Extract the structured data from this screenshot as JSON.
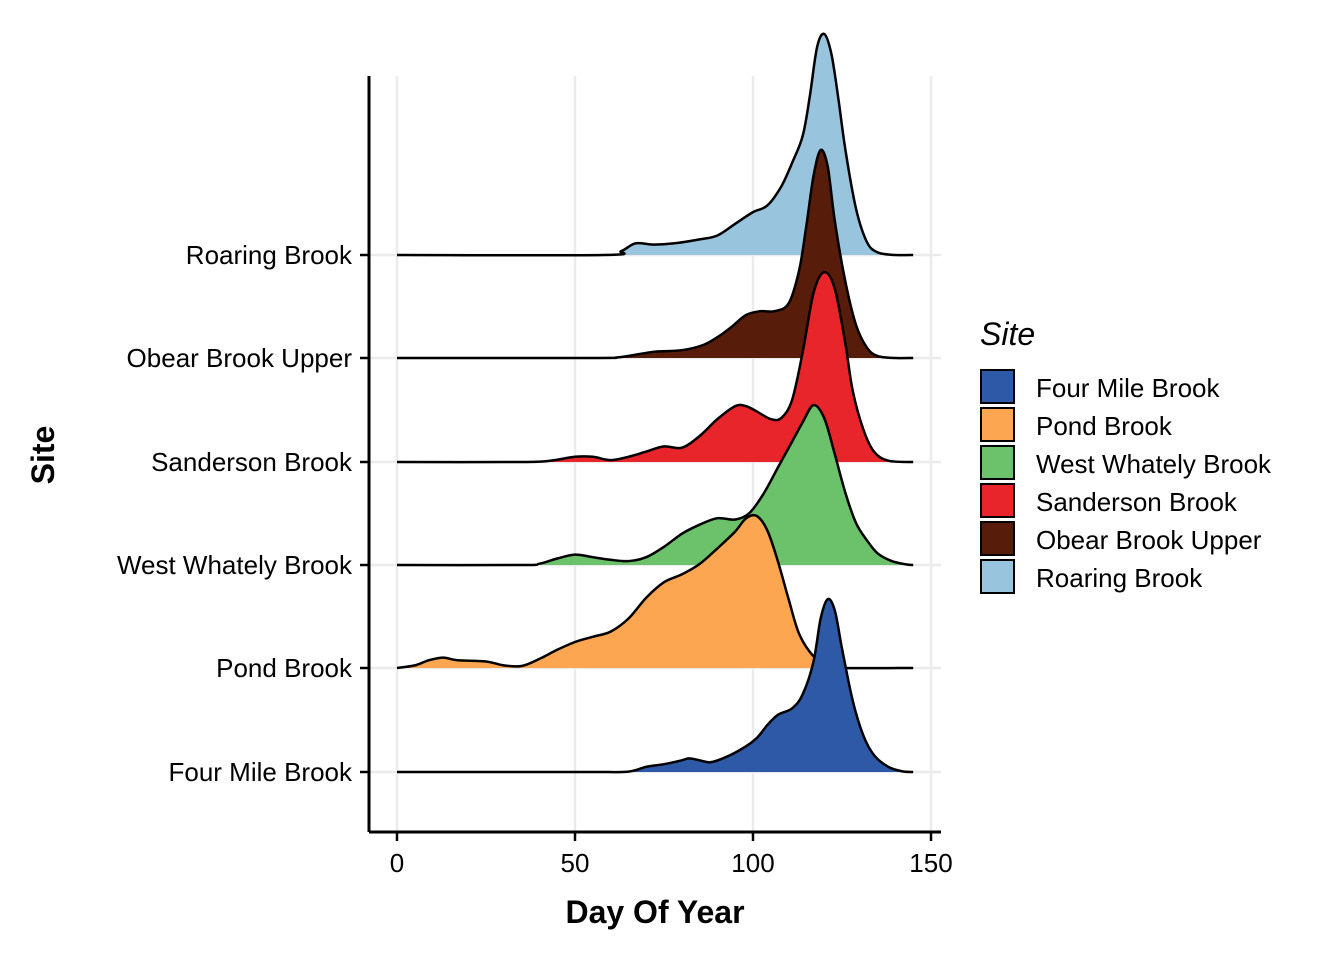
{
  "chart_data": {
    "type": "ridgeline",
    "title": "",
    "xlabel": "Day Of Year",
    "ylabel": "Site",
    "xlim": [
      -8,
      152
    ],
    "x_ticks": [
      0,
      50,
      100,
      150
    ],
    "x_tick_labels": [
      "0",
      "50",
      "100",
      "150"
    ],
    "grid": "vertical",
    "legend": {
      "title": "Site",
      "placement": "right"
    },
    "categories": [
      "Four Mile Brook",
      "Pond Brook",
      "West Whately Brook",
      "Sanderson Brook",
      "Obear Brook Upper",
      "Roaring Brook"
    ],
    "series": [
      {
        "name": "Four Mile Brook",
        "color": "#2E59A7",
        "points": [
          [
            0,
            0
          ],
          [
            35,
            0
          ],
          [
            55,
            0
          ],
          [
            65,
            0.003
          ],
          [
            70,
            0.04
          ],
          [
            75,
            0.06
          ],
          [
            80,
            0.09
          ],
          [
            82,
            0.105
          ],
          [
            85,
            0.09
          ],
          [
            88,
            0.075
          ],
          [
            92,
            0.11
          ],
          [
            97,
            0.18
          ],
          [
            101,
            0.26
          ],
          [
            104,
            0.36
          ],
          [
            107,
            0.44
          ],
          [
            111,
            0.49
          ],
          [
            114,
            0.6
          ],
          [
            117,
            0.85
          ],
          [
            119,
            1.18
          ],
          [
            121,
            1.33
          ],
          [
            123,
            1.24
          ],
          [
            125,
            0.95
          ],
          [
            128,
            0.55
          ],
          [
            131,
            0.28
          ],
          [
            134,
            0.13
          ],
          [
            138,
            0.04
          ],
          [
            142,
            0.005
          ],
          [
            145,
            0
          ]
        ]
      },
      {
        "name": "Pond Brook",
        "color": "#FCA652",
        "points": [
          [
            0,
            0
          ],
          [
            5,
            0.02
          ],
          [
            9,
            0.06
          ],
          [
            13,
            0.08
          ],
          [
            17,
            0.06
          ],
          [
            25,
            0.05
          ],
          [
            30,
            0.02
          ],
          [
            35,
            0.015
          ],
          [
            40,
            0.07
          ],
          [
            45,
            0.14
          ],
          [
            50,
            0.2
          ],
          [
            55,
            0.24
          ],
          [
            60,
            0.28
          ],
          [
            65,
            0.38
          ],
          [
            70,
            0.54
          ],
          [
            75,
            0.66
          ],
          [
            80,
            0.72
          ],
          [
            85,
            0.8
          ],
          [
            90,
            0.92
          ],
          [
            95,
            1.05
          ],
          [
            98,
            1.15
          ],
          [
            101,
            1.17
          ],
          [
            104,
            1.06
          ],
          [
            107,
            0.82
          ],
          [
            110,
            0.53
          ],
          [
            113,
            0.26
          ],
          [
            117,
            0.09
          ],
          [
            121,
            0.02
          ],
          [
            125,
            0
          ],
          [
            145,
            0
          ]
        ]
      },
      {
        "name": "West Whately Brook",
        "color": "#6CC16B",
        "points": [
          [
            0,
            0
          ],
          [
            35,
            0
          ],
          [
            40,
            0.01
          ],
          [
            45,
            0.05
          ],
          [
            50,
            0.08
          ],
          [
            55,
            0.06
          ],
          [
            60,
            0.04
          ],
          [
            65,
            0.03
          ],
          [
            70,
            0.06
          ],
          [
            75,
            0.14
          ],
          [
            80,
            0.24
          ],
          [
            85,
            0.31
          ],
          [
            90,
            0.36
          ],
          [
            95,
            0.35
          ],
          [
            99,
            0.4
          ],
          [
            103,
            0.55
          ],
          [
            107,
            0.75
          ],
          [
            111,
            0.95
          ],
          [
            114,
            1.1
          ],
          [
            117,
            1.23
          ],
          [
            120,
            1.13
          ],
          [
            123,
            0.85
          ],
          [
            126,
            0.55
          ],
          [
            129,
            0.32
          ],
          [
            132,
            0.19
          ],
          [
            135,
            0.09
          ],
          [
            139,
            0.03
          ],
          [
            143,
            0.005
          ],
          [
            145,
            0
          ]
        ]
      },
      {
        "name": "Sanderson Brook",
        "color": "#E8252A",
        "points": [
          [
            0,
            0
          ],
          [
            35,
            0
          ],
          [
            43,
            0.01
          ],
          [
            50,
            0.04
          ],
          [
            55,
            0.04
          ],
          [
            60,
            0.015
          ],
          [
            65,
            0.04
          ],
          [
            70,
            0.08
          ],
          [
            75,
            0.12
          ],
          [
            80,
            0.11
          ],
          [
            85,
            0.2
          ],
          [
            90,
            0.33
          ],
          [
            95,
            0.43
          ],
          [
            98,
            0.43
          ],
          [
            101,
            0.39
          ],
          [
            105,
            0.33
          ],
          [
            108,
            0.34
          ],
          [
            111,
            0.48
          ],
          [
            114,
            0.85
          ],
          [
            117,
            1.3
          ],
          [
            120,
            1.46
          ],
          [
            123,
            1.33
          ],
          [
            126,
            0.9
          ],
          [
            128,
            0.55
          ],
          [
            131,
            0.25
          ],
          [
            134,
            0.08
          ],
          [
            138,
            0.01
          ],
          [
            145,
            0
          ]
        ]
      },
      {
        "name": "Obear Brook Upper",
        "color": "#581C0A",
        "points": [
          [
            0,
            0
          ],
          [
            55,
            0
          ],
          [
            62,
            0.005
          ],
          [
            68,
            0.03
          ],
          [
            73,
            0.05
          ],
          [
            80,
            0.06
          ],
          [
            86,
            0.1
          ],
          [
            90,
            0.16
          ],
          [
            94,
            0.24
          ],
          [
            98,
            0.33
          ],
          [
            102,
            0.36
          ],
          [
            106,
            0.36
          ],
          [
            110,
            0.42
          ],
          [
            113,
            0.68
          ],
          [
            115,
            1.02
          ],
          [
            117,
            1.4
          ],
          [
            119,
            1.6
          ],
          [
            121,
            1.47
          ],
          [
            123,
            1.05
          ],
          [
            126,
            0.58
          ],
          [
            129,
            0.25
          ],
          [
            132,
            0.08
          ],
          [
            135,
            0.015
          ],
          [
            140,
            0
          ],
          [
            145,
            0
          ]
        ]
      },
      {
        "name": "Roaring Brook",
        "color": "#98C4DE",
        "points": [
          [
            0,
            0
          ],
          [
            58,
            0
          ],
          [
            63,
            0.03
          ],
          [
            67,
            0.09
          ],
          [
            72,
            0.08
          ],
          [
            78,
            0.09
          ],
          [
            85,
            0.12
          ],
          [
            90,
            0.15
          ],
          [
            95,
            0.24
          ],
          [
            100,
            0.33
          ],
          [
            104,
            0.38
          ],
          [
            108,
            0.53
          ],
          [
            111,
            0.71
          ],
          [
            114,
            0.92
          ],
          [
            116,
            1.23
          ],
          [
            118,
            1.6
          ],
          [
            120,
            1.7
          ],
          [
            122,
            1.55
          ],
          [
            124,
            1.2
          ],
          [
            126,
            0.8
          ],
          [
            129,
            0.35
          ],
          [
            132,
            0.1
          ],
          [
            135,
            0.02
          ],
          [
            140,
            0
          ],
          [
            145,
            0
          ]
        ]
      }
    ]
  }
}
